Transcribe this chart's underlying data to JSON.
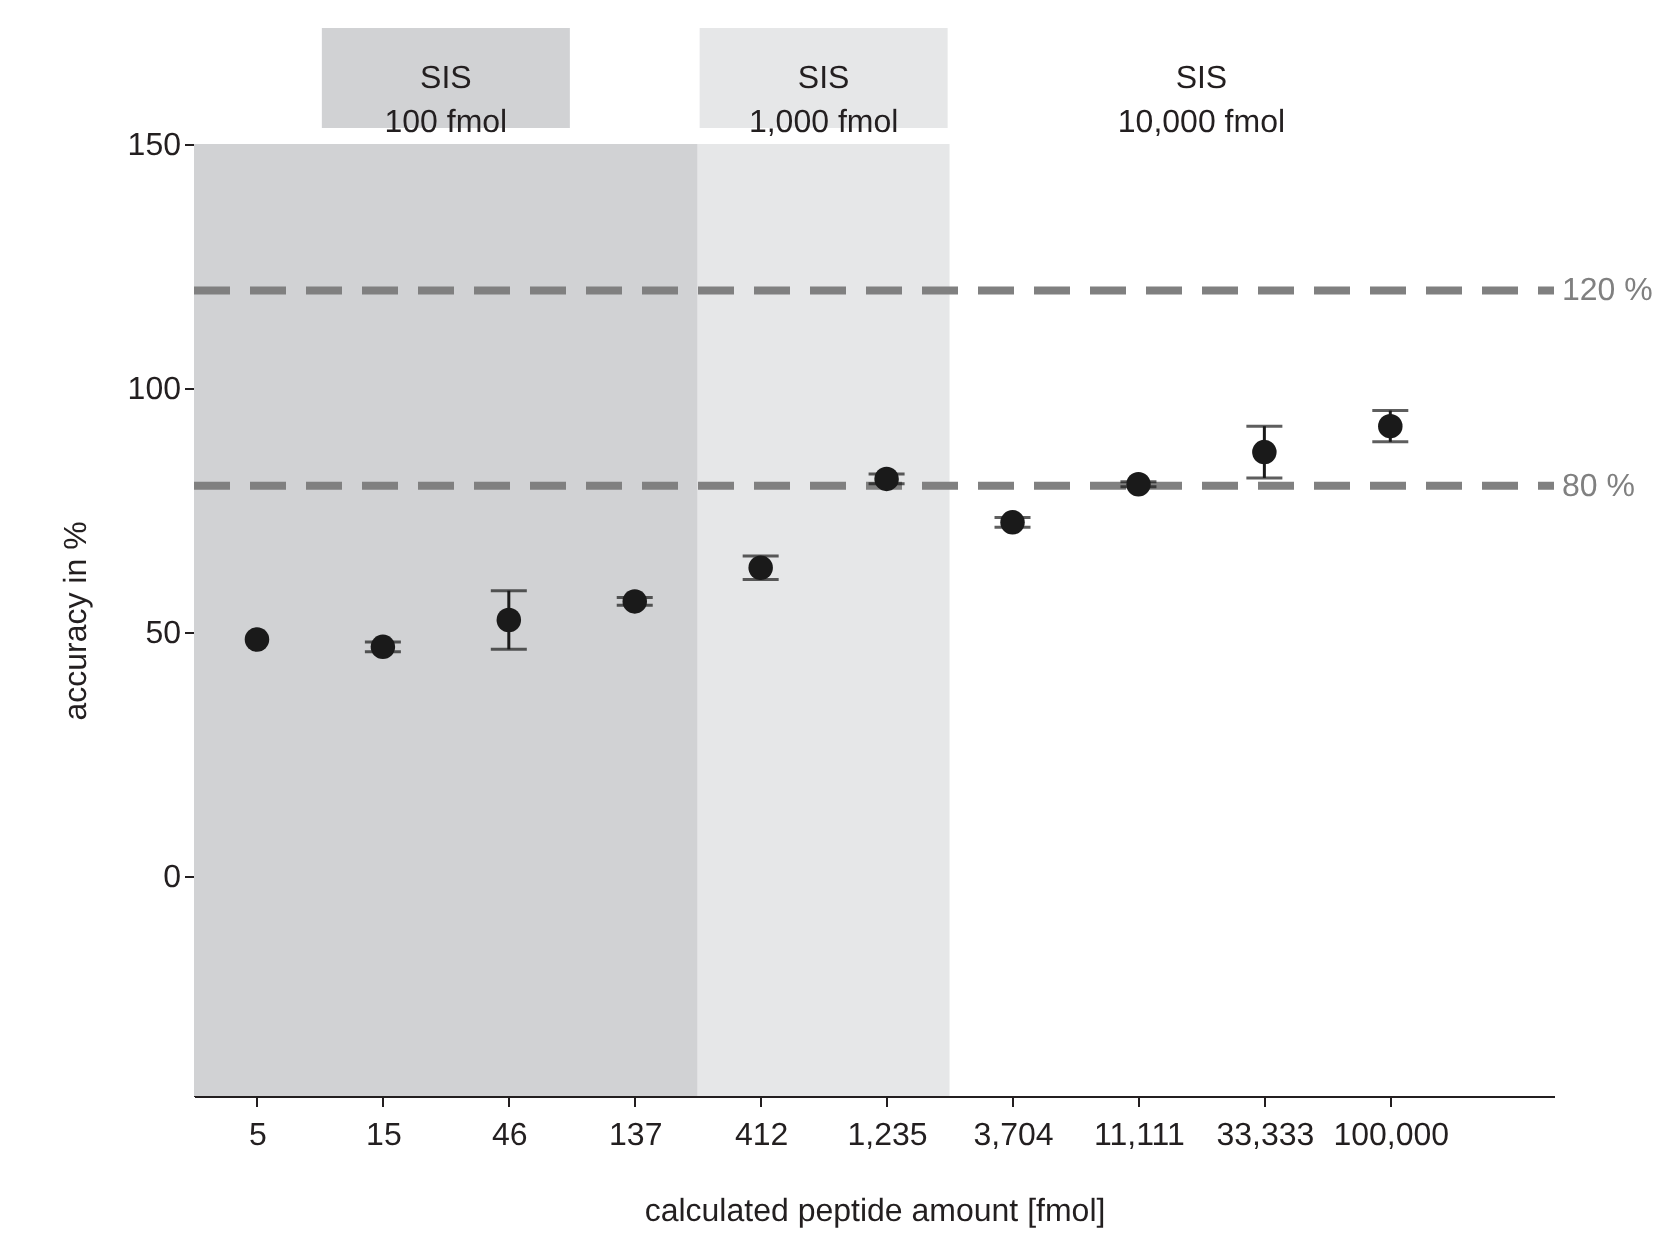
{
  "chart_data": {
    "type": "scatter",
    "xlabel": "calculated peptide amount [fmol]",
    "ylabel": "accuracy in %",
    "categories": [
      "5",
      "15",
      "46",
      "137",
      "412",
      "1,235",
      "3,704",
      "11,111",
      "33,333",
      "100,000"
    ],
    "series": [
      {
        "color": "#1a1a1a",
        "values": [
          48.5,
          47,
          52.5,
          56.3,
          63.2,
          81.4,
          72.5,
          80.3,
          86.9,
          92.2
        ],
        "errors": [
          null,
          1,
          6,
          0.8,
          2.4,
          1,
          1,
          0.5,
          5.3,
          3.2
        ]
      }
    ],
    "ylim": [
      -45,
      150
    ],
    "yticks": [
      0,
      50,
      100,
      150
    ],
    "ref_lines": [
      {
        "axis": "y",
        "value": 120,
        "label": "120 %",
        "color": "#808080",
        "line_style": "dashed"
      },
      {
        "axis": "y",
        "value": 80,
        "label": "80 %",
        "color": "#808080",
        "line_style": "dashed"
      }
    ],
    "bands": [
      {
        "axis": "x",
        "from": "5",
        "to": "137",
        "label": "SIS\n100 fmol",
        "color": "#d1d2d4"
      },
      {
        "axis": "x",
        "from": "412",
        "to": "1,235",
        "label": "SIS\n1,000 fmol",
        "color": "#e6e7e8"
      }
    ],
    "annotations": [
      "SIS\n10,000 fmol"
    ],
    "marker": "circle",
    "grid": false
  }
}
